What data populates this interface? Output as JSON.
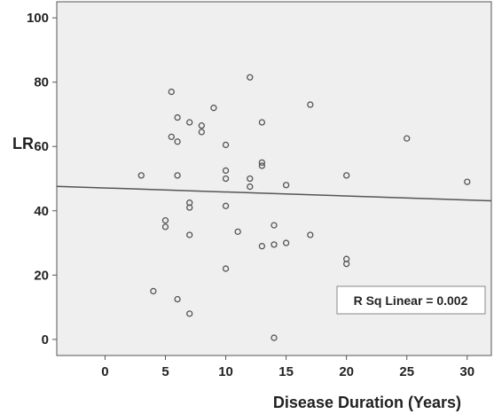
{
  "chart_data": {
    "type": "scatter",
    "xlabel": "Disease Duration (Years)",
    "ylabel": "LR",
    "xlim": [
      -4,
      32
    ],
    "ylim": [
      -5,
      105
    ],
    "xticks": [
      0,
      5,
      10,
      15,
      20,
      25,
      30
    ],
    "yticks": [
      0,
      20,
      40,
      60,
      80,
      100
    ],
    "grid": false,
    "plot_background": "#efefef",
    "marker_color": "#555555",
    "fit_line": {
      "x": [
        -4,
        32
      ],
      "y": [
        47.6,
        43.1
      ]
    },
    "annotation": "R Sq Linear = 0.002",
    "points": [
      {
        "x": 3,
        "y": 51
      },
      {
        "x": 4,
        "y": 15
      },
      {
        "x": 5,
        "y": 37
      },
      {
        "x": 5,
        "y": 35
      },
      {
        "x": 5.5,
        "y": 77
      },
      {
        "x": 5.5,
        "y": 63
      },
      {
        "x": 6,
        "y": 69
      },
      {
        "x": 6,
        "y": 61.5
      },
      {
        "x": 6,
        "y": 51
      },
      {
        "x": 6,
        "y": 12.5
      },
      {
        "x": 7,
        "y": 67.5
      },
      {
        "x": 7,
        "y": 42.5
      },
      {
        "x": 7,
        "y": 41
      },
      {
        "x": 7,
        "y": 32.5
      },
      {
        "x": 7,
        "y": 8
      },
      {
        "x": 8,
        "y": 66.5
      },
      {
        "x": 8,
        "y": 64.5
      },
      {
        "x": 9,
        "y": 72
      },
      {
        "x": 10,
        "y": 60.5
      },
      {
        "x": 10,
        "y": 52.5
      },
      {
        "x": 10,
        "y": 50
      },
      {
        "x": 10,
        "y": 41.5
      },
      {
        "x": 10,
        "y": 22
      },
      {
        "x": 11,
        "y": 33.5
      },
      {
        "x": 12,
        "y": 81.5
      },
      {
        "x": 12,
        "y": 50
      },
      {
        "x": 12,
        "y": 47.5
      },
      {
        "x": 13,
        "y": 67.5
      },
      {
        "x": 13,
        "y": 55
      },
      {
        "x": 13,
        "y": 54
      },
      {
        "x": 13,
        "y": 29
      },
      {
        "x": 14,
        "y": 35.5
      },
      {
        "x": 14,
        "y": 29.5
      },
      {
        "x": 14,
        "y": 0.5
      },
      {
        "x": 15,
        "y": 48
      },
      {
        "x": 15,
        "y": 30
      },
      {
        "x": 17,
        "y": 73
      },
      {
        "x": 17,
        "y": 32.5
      },
      {
        "x": 20,
        "y": 51
      },
      {
        "x": 20,
        "y": 25
      },
      {
        "x": 20,
        "y": 23.5
      },
      {
        "x": 25,
        "y": 62.5
      },
      {
        "x": 30,
        "y": 49
      }
    ]
  }
}
